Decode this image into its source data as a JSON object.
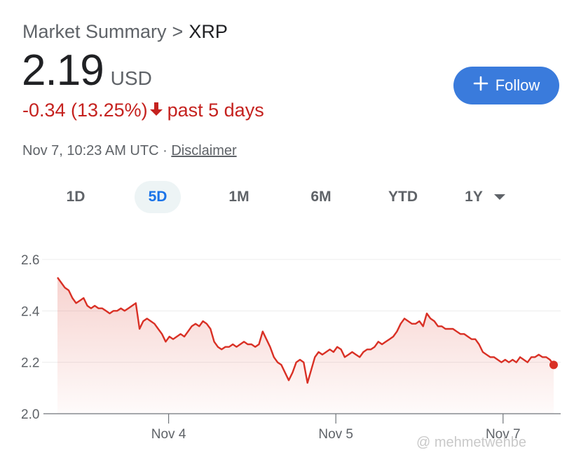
{
  "header": {
    "breadcrumb_parent": "Market Summary",
    "breadcrumb_sep": ">",
    "breadcrumb_current": "XRP"
  },
  "price": {
    "value": "2.19",
    "currency": "USD"
  },
  "change": {
    "text": "-0.34 (13.25%)",
    "arrow": "↓",
    "period": "past 5 days",
    "color": "#c5221f"
  },
  "timestamp": {
    "text": "Nov 7, 10:23 AM UTC ·",
    "disclaimer": "Disclaimer"
  },
  "follow_button": {
    "label": "Follow",
    "icon": "plus-icon",
    "color": "#3a7bdc"
  },
  "tabs": [
    {
      "label": "1D"
    },
    {
      "label": "5D",
      "active": true
    },
    {
      "label": "1M"
    },
    {
      "label": "6M"
    },
    {
      "label": "YTD"
    },
    {
      "label": "1Y",
      "dropdown": true
    }
  ],
  "watermark": "@ mehmetwehbe",
  "chart_data": {
    "type": "area",
    "y_ticks": [
      "2.6",
      "2.4",
      "2.2",
      "2.0"
    ],
    "x_ticks": [
      "Nov 4",
      "Nov 5",
      "Nov 7"
    ],
    "ylim": [
      2.0,
      2.6
    ],
    "grid": true,
    "line_color": "#d93025",
    "series": [
      {
        "values": [
          2.53,
          2.51,
          2.49,
          2.48,
          2.45,
          2.43,
          2.44,
          2.45,
          2.42,
          2.41,
          2.42,
          2.41,
          2.41,
          2.4,
          2.39,
          2.4,
          2.4,
          2.41,
          2.4,
          2.41,
          2.42,
          2.43,
          2.33,
          2.36,
          2.37,
          2.36,
          2.35,
          2.33,
          2.31,
          2.28,
          2.3,
          2.29,
          2.3,
          2.31,
          2.3,
          2.32,
          2.34,
          2.35,
          2.34,
          2.36,
          2.35,
          2.33,
          2.28,
          2.26,
          2.25,
          2.26,
          2.26,
          2.27,
          2.26,
          2.27,
          2.28,
          2.27,
          2.27,
          2.26,
          2.27,
          2.32,
          2.29,
          2.26,
          2.22,
          2.2,
          2.19,
          2.16,
          2.13,
          2.16,
          2.2,
          2.21,
          2.2,
          2.12,
          2.17,
          2.22,
          2.24,
          2.23,
          2.24,
          2.25,
          2.24,
          2.26,
          2.25,
          2.22,
          2.23,
          2.24,
          2.23,
          2.22,
          2.24,
          2.25,
          2.25,
          2.26,
          2.28,
          2.27,
          2.28,
          2.29,
          2.3,
          2.32,
          2.35,
          2.37,
          2.36,
          2.35,
          2.35,
          2.36,
          2.34,
          2.39,
          2.37,
          2.36,
          2.34,
          2.34,
          2.33,
          2.33,
          2.33,
          2.32,
          2.31,
          2.31,
          2.3,
          2.29,
          2.29,
          2.27,
          2.24,
          2.23,
          2.22,
          2.22,
          2.21,
          2.2,
          2.21,
          2.2,
          2.21,
          2.2,
          2.22,
          2.21,
          2.2,
          2.22,
          2.22,
          2.23,
          2.22,
          2.22,
          2.21,
          2.19
        ]
      }
    ]
  }
}
